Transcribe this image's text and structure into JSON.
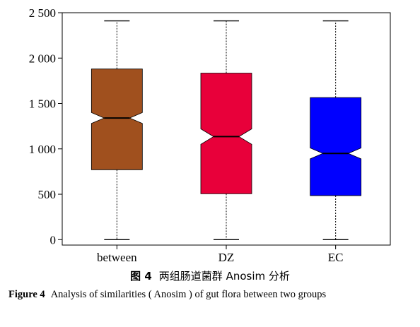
{
  "chart_data": {
    "type": "box",
    "categories": [
      "between",
      "DZ",
      "EC"
    ],
    "series": [
      {
        "category": "between",
        "min": 0,
        "q1": 770,
        "median": 1340,
        "q3": 1880,
        "max": 2410,
        "notch_low": 1280,
        "notch_high": 1400,
        "color": "#A0501E"
      },
      {
        "category": "DZ",
        "min": 0,
        "q1": 505,
        "median": 1135,
        "q3": 1835,
        "max": 2410,
        "notch_low": 1050,
        "notch_high": 1220,
        "color": "#E8003A"
      },
      {
        "category": "EC",
        "min": 0,
        "q1": 485,
        "median": 950,
        "q3": 1565,
        "max": 2410,
        "notch_low": 890,
        "notch_high": 1010,
        "color": "#0000FF"
      }
    ],
    "yticks": [
      0,
      500,
      1000,
      1500,
      2000,
      2500
    ],
    "ytick_labels": [
      "0",
      "500",
      "1 000",
      "1 500",
      "2 000",
      "2 500"
    ],
    "ylim": [
      -60,
      2500
    ],
    "grid": false
  },
  "caption": {
    "cn_label": "图 4",
    "cn_text": "两组肠道菌群 Anosim 分析",
    "en_label": "Figure 4",
    "en_text": "Analysis of similarities ( Anosim ) of gut flora between two groups"
  }
}
